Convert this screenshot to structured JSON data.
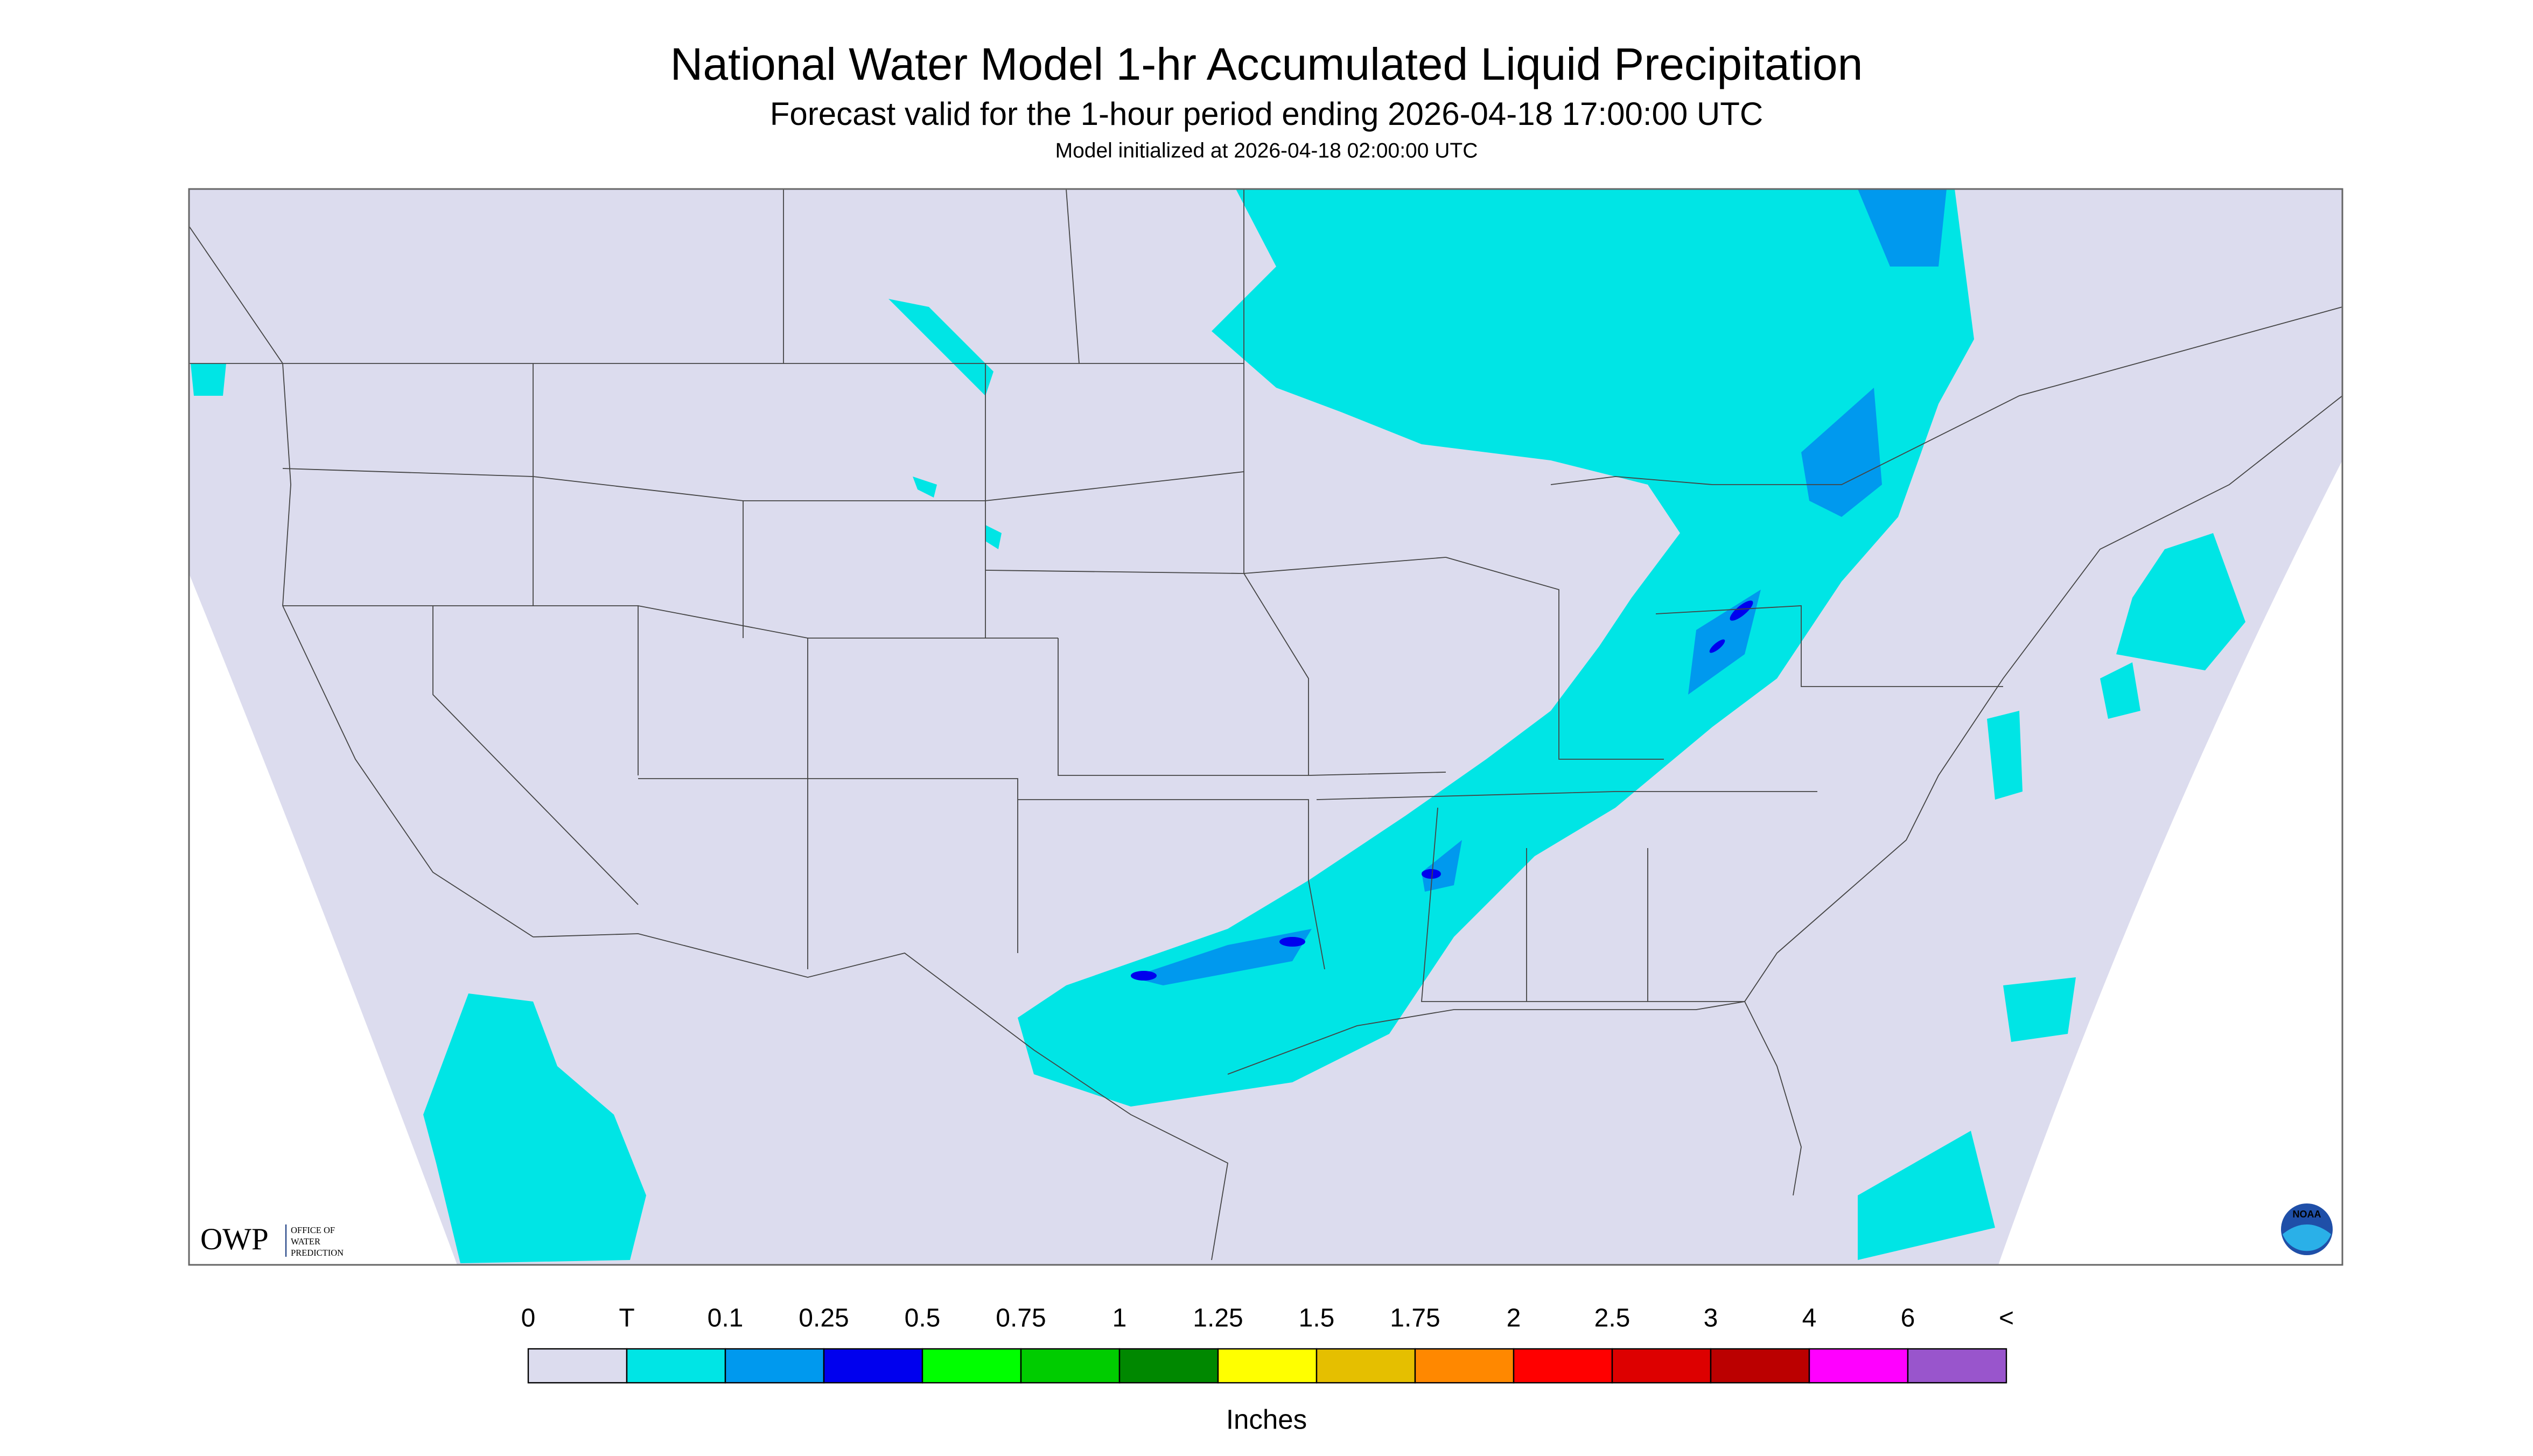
{
  "header": {
    "title": "National Water Model 1-hr Accumulated Liquid Precipitation",
    "subtitle": "Forecast valid for the 1-hour period ending 2026-04-18 17:00:00 UTC",
    "initialized": "Model initialized at 2026-04-18 02:00:00 UTC"
  },
  "logos": {
    "owp": "OWP",
    "owp_lines": [
      "OFFICE OF",
      "WATER",
      "PREDICTION"
    ],
    "noaa": "NOAA"
  },
  "legend": {
    "labels": [
      "0",
      "T",
      "0.1",
      "0.25",
      "0.5",
      "0.75",
      "1",
      "1.25",
      "1.5",
      "1.75",
      "2",
      "2.5",
      "3",
      "4",
      "6",
      "<"
    ],
    "colors": [
      "#dcdcee",
      "#00e5e5",
      "#0099ee",
      "#0000ee",
      "#00ff00",
      "#00cc00",
      "#008800",
      "#ffff00",
      "#e5bf00",
      "#ff8800",
      "#ff0000",
      "#dd0000",
      "#bb0000",
      "#ff00ff",
      "#9955cc"
    ],
    "unit": "Inches"
  }
}
